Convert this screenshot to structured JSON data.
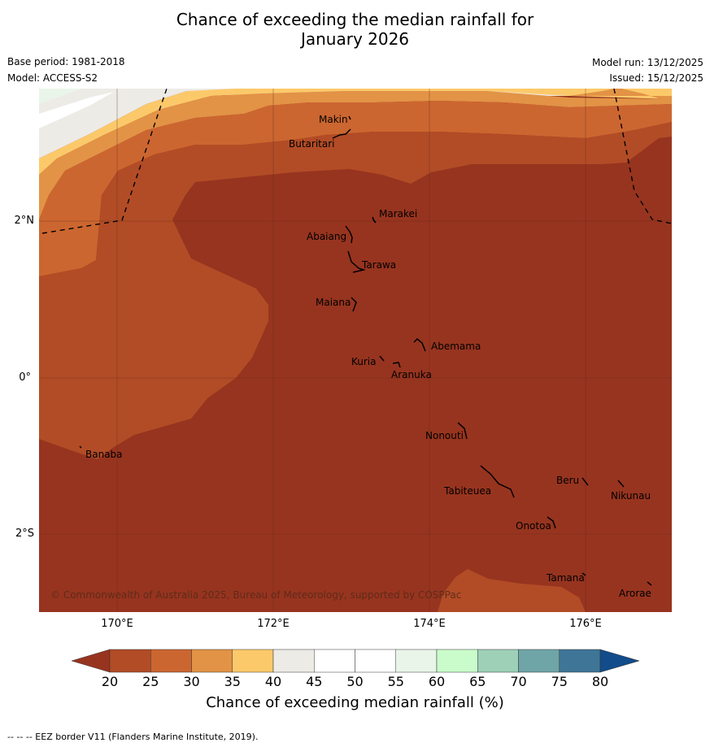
{
  "title_line1": "Chance of exceeding the median rainfall for",
  "title_line2": "January 2026",
  "meta": {
    "base_period": "Base period: 1981-2018",
    "model": "Model: ACCESS-S2",
    "model_run": "Model run: 13/12/2025",
    "issued": "Issued: 15/12/2025"
  },
  "axes": {
    "lat_labels": [
      "2°N",
      "0°",
      "2°S"
    ],
    "lon_labels": [
      "170°E",
      "172°E",
      "174°E",
      "176°E"
    ]
  },
  "places": [
    "Makin",
    "Butaritari",
    "Marakei",
    "Abaiang",
    "Tarawa",
    "Maiana",
    "Abemama",
    "Kuria",
    "Aranuka",
    "Banaba",
    "Nonouti",
    "Beru",
    "Nikunau",
    "Tabiteuea",
    "Onotoa",
    "Tamana",
    "Arorae"
  ],
  "copyright": "© Commonwealth of Australia 2025, Bureau of Meteorology, supported by COSPPac",
  "colorbar": {
    "ticks": [
      "20",
      "25",
      "30",
      "35",
      "40",
      "45",
      "50",
      "55",
      "60",
      "65",
      "70",
      "75",
      "80"
    ],
    "colors": [
      "#b24c26",
      "#cc6630",
      "#e29346",
      "#fcc96a",
      "#edebe6",
      "#ffffff",
      "#ffffff",
      "#eaf5e9",
      "#c9fcca",
      "#9dd0b7",
      "#6fa5a6",
      "#3f7597",
      "#124c8a"
    ],
    "under_color": "#97341f",
    "over_color": "#124c8a",
    "label": "Chance of exceeding median rainfall (%)"
  },
  "footer": "--  --  -- EEZ border V11 (Flanders Marine Institute, 2019)."
}
